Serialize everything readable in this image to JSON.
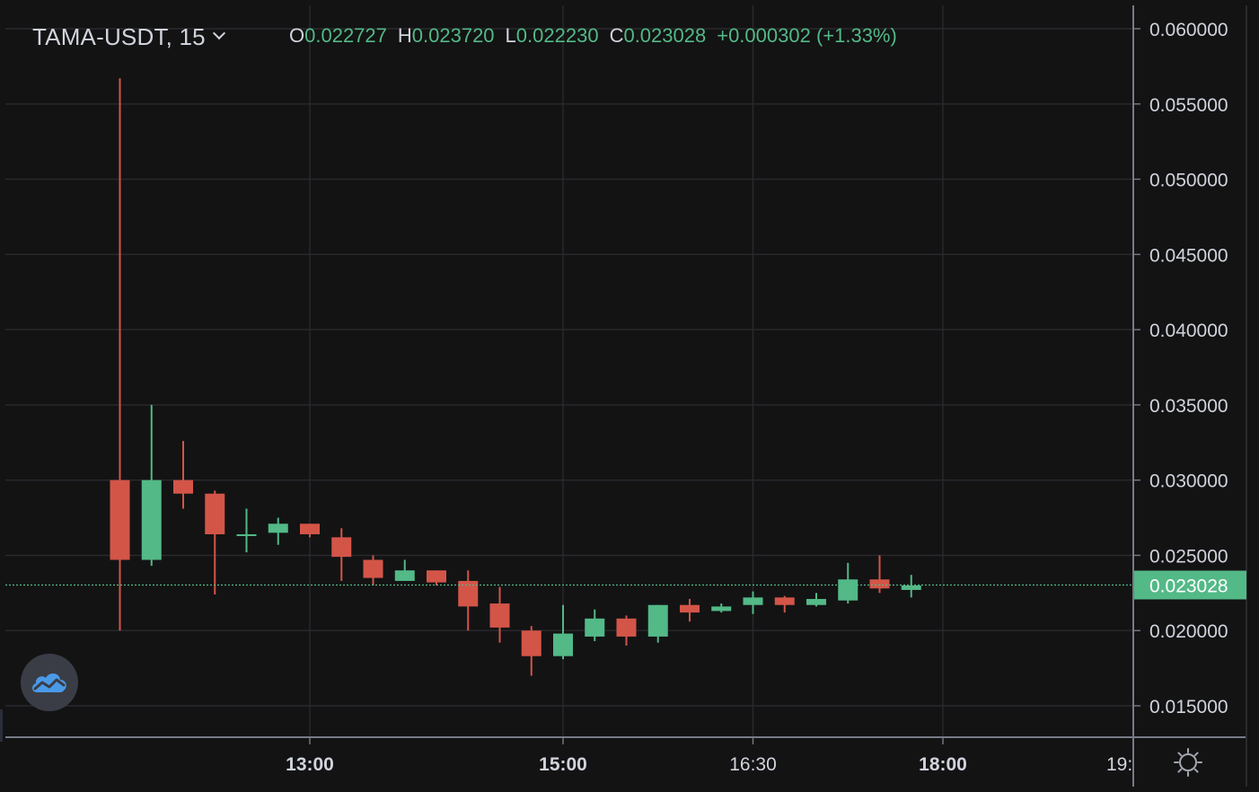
{
  "header": {
    "symbol": "TAMA-USDT, 15",
    "o_label": "O",
    "o_value": "0.022727",
    "h_label": "H",
    "h_value": "0.023720",
    "l_label": "L",
    "l_value": "0.022230",
    "c_label": "C",
    "c_value": "0.023028",
    "change": "+0.000302 (+1.33%)"
  },
  "colors": {
    "background": "#131314",
    "grid": "#2a2a2e",
    "up": "#53b987",
    "down": "#d35548",
    "axis_text": "#d1d4dc",
    "price_label_bg": "#53b987"
  },
  "icons": {
    "logo": "cloud-chart-icon",
    "settings": "gear-icon",
    "dropdown": "chevron-down-icon"
  },
  "chart_data": {
    "type": "candlestick",
    "interval": "15",
    "ylim": [
      0.0125,
      0.0615
    ],
    "y_ticks": [
      "0.060000",
      "0.055000",
      "0.050000",
      "0.045000",
      "0.040000",
      "0.035000",
      "0.030000",
      "0.025000",
      "0.020000",
      "0.015000"
    ],
    "x_ticks": [
      {
        "label": "13:00",
        "bold": true,
        "hours": 13.0
      },
      {
        "label": "15:00",
        "bold": true,
        "hours": 15.0
      },
      {
        "label": "16:30",
        "bold": false,
        "hours": 16.5
      },
      {
        "label": "18:00",
        "bold": true,
        "hours": 18.0
      },
      {
        "label": "19:",
        "bold": false,
        "hours": 19.5
      }
    ],
    "last_price": "0.023028",
    "last_price_value": 0.023028,
    "candles": [
      {
        "time": "11:30",
        "open": 0.03,
        "high": 0.0567,
        "low": 0.02,
        "close": 0.0247
      },
      {
        "time": "11:45",
        "open": 0.0247,
        "high": 0.035,
        "low": 0.0243,
        "close": 0.03
      },
      {
        "time": "12:00",
        "open": 0.03,
        "high": 0.0326,
        "low": 0.0281,
        "close": 0.0291
      },
      {
        "time": "12:15",
        "open": 0.0291,
        "high": 0.0293,
        "low": 0.0224,
        "close": 0.0264
      },
      {
        "time": "12:30",
        "open": 0.0264,
        "high": 0.0281,
        "low": 0.0252,
        "close": 0.0264
      },
      {
        "time": "12:45",
        "open": 0.0265,
        "high": 0.0275,
        "low": 0.0257,
        "close": 0.0271
      },
      {
        "time": "13:00",
        "open": 0.0271,
        "high": 0.0271,
        "low": 0.0262,
        "close": 0.0264
      },
      {
        "time": "13:15",
        "open": 0.0262,
        "high": 0.0268,
        "low": 0.0233,
        "close": 0.0249
      },
      {
        "time": "13:30",
        "open": 0.0247,
        "high": 0.025,
        "low": 0.023,
        "close": 0.0235
      },
      {
        "time": "13:45",
        "open": 0.0233,
        "high": 0.0247,
        "low": 0.0233,
        "close": 0.024
      },
      {
        "time": "14:00",
        "open": 0.024,
        "high": 0.024,
        "low": 0.023,
        "close": 0.0232
      },
      {
        "time": "14:15",
        "open": 0.0233,
        "high": 0.024,
        "low": 0.02,
        "close": 0.0216
      },
      {
        "time": "14:30",
        "open": 0.0218,
        "high": 0.0229,
        "low": 0.0192,
        "close": 0.0202
      },
      {
        "time": "14:45",
        "open": 0.02,
        "high": 0.0203,
        "low": 0.017,
        "close": 0.0183
      },
      {
        "time": "15:00",
        "open": 0.0183,
        "high": 0.0217,
        "low": 0.0181,
        "close": 0.0198
      },
      {
        "time": "15:15",
        "open": 0.0196,
        "high": 0.0214,
        "low": 0.0193,
        "close": 0.0208
      },
      {
        "time": "15:30",
        "open": 0.0208,
        "high": 0.021,
        "low": 0.019,
        "close": 0.0196
      },
      {
        "time": "15:45",
        "open": 0.0196,
        "high": 0.0217,
        "low": 0.0192,
        "close": 0.0217
      },
      {
        "time": "16:00",
        "open": 0.0217,
        "high": 0.0221,
        "low": 0.0206,
        "close": 0.0212
      },
      {
        "time": "16:15",
        "open": 0.0213,
        "high": 0.0218,
        "low": 0.0212,
        "close": 0.0216
      },
      {
        "time": "16:30",
        "open": 0.0217,
        "high": 0.0226,
        "low": 0.0211,
        "close": 0.0222
      },
      {
        "time": "16:45",
        "open": 0.0222,
        "high": 0.0223,
        "low": 0.0212,
        "close": 0.0217
      },
      {
        "time": "17:00",
        "open": 0.0217,
        "high": 0.0225,
        "low": 0.0216,
        "close": 0.0221
      },
      {
        "time": "17:15",
        "open": 0.022,
        "high": 0.0245,
        "low": 0.0218,
        "close": 0.0234
      },
      {
        "time": "17:30",
        "open": 0.0234,
        "high": 0.025,
        "low": 0.0225,
        "close": 0.0228
      },
      {
        "time": "17:45",
        "open": 0.0227,
        "high": 0.0237,
        "low": 0.0222,
        "close": 0.023
      }
    ]
  }
}
